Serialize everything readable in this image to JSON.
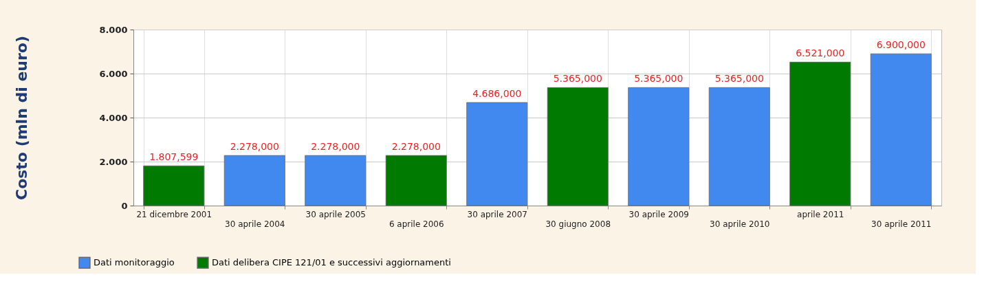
{
  "chart_data": {
    "type": "bar",
    "ylabel": "Costo (mln di euro)",
    "categories": [
      "21 dicembre 2001",
      "30 aprile 2004",
      "30 aprile 2005",
      "6 aprile 2006",
      "30 aprile 2007",
      "30 giugno 2008",
      "30 aprile 2009",
      "30 aprile 2010",
      "aprile 2011",
      "30 aprile 2011"
    ],
    "series": [
      {
        "name": "Dati monitoraggio",
        "color": "#4189ee",
        "values": [
          null,
          2278,
          2278,
          null,
          4686,
          null,
          5365,
          5365,
          null,
          6900
        ]
      },
      {
        "name": "Dati delibera CIPE 121/01 e successivi aggiornamenti",
        "color": "#007a00",
        "values": [
          1807.599,
          null,
          null,
          2278,
          null,
          5365,
          null,
          null,
          6521,
          null
        ]
      }
    ],
    "value_labels": [
      "1.807,599",
      "2.278,000",
      "2.278,000",
      "2.278,000",
      "4.686,000",
      "5.365,000",
      "5.365,000",
      "5.365,000",
      "6.521,000",
      "6.900,000"
    ],
    "ylim": [
      0,
      8000
    ],
    "yticks": [
      0,
      {
        "value": 2000,
        "label": "2.000"
      },
      {
        "value": 4000,
        "label": "4.000"
      },
      {
        "value": 6000,
        "label": "6.000"
      },
      {
        "value": 8000,
        "label": "8.000"
      }
    ],
    "grid": true,
    "legend": "bottom left"
  }
}
